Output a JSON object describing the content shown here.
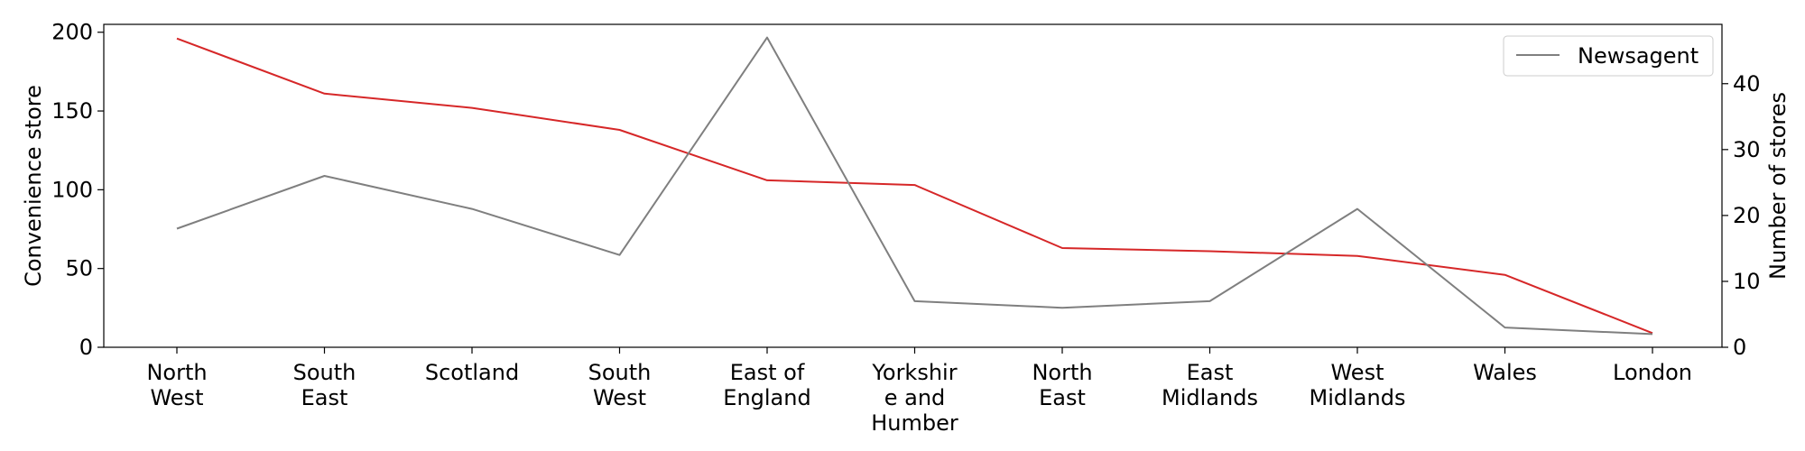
{
  "chart_data": {
    "type": "line",
    "categories": [
      [
        "North",
        "West"
      ],
      [
        "South",
        "East"
      ],
      [
        "Scotland"
      ],
      [
        "South",
        "West"
      ],
      [
        "East of",
        "England"
      ],
      [
        "Yorkshir",
        "e and",
        "Humber"
      ],
      [
        "North",
        "East"
      ],
      [
        "East",
        "Midlands"
      ],
      [
        "West",
        "Midlands"
      ],
      [
        "Wales"
      ],
      [
        "London"
      ]
    ],
    "ylabel_left": "Convenience store",
    "ylabel_right": "Number of stores",
    "ylim_left": [
      0,
      205
    ],
    "ylim_right": [
      0,
      49
    ],
    "yticks_left": [
      0,
      50,
      100,
      150,
      200
    ],
    "yticks_right": [
      0,
      10,
      20,
      30,
      40
    ],
    "grid": false,
    "legend_position": "top-right",
    "series": [
      {
        "axis": "left",
        "color": "#d62728",
        "values": [
          196,
          161,
          152,
          138,
          106,
          103,
          63,
          61,
          58,
          46,
          9
        ]
      },
      {
        "name": "Newsagent",
        "axis": "right",
        "color": "#7f7f7f",
        "values": [
          18,
          26,
          21,
          14,
          47,
          7,
          6,
          7,
          21,
          3,
          2
        ]
      }
    ]
  }
}
